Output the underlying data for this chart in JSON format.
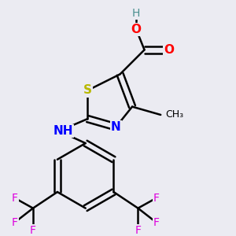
{
  "background_color": "#ebebf2",
  "atom_colors": {
    "C": "#000000",
    "H": "#4a8f8f",
    "N": "#0000ff",
    "O": "#ff0000",
    "S": "#b8b800",
    "F": "#dd00dd"
  },
  "bond_color": "#000000",
  "bond_width": 1.8,
  "figsize": [
    3.0,
    3.0
  ],
  "dpi": 100
}
